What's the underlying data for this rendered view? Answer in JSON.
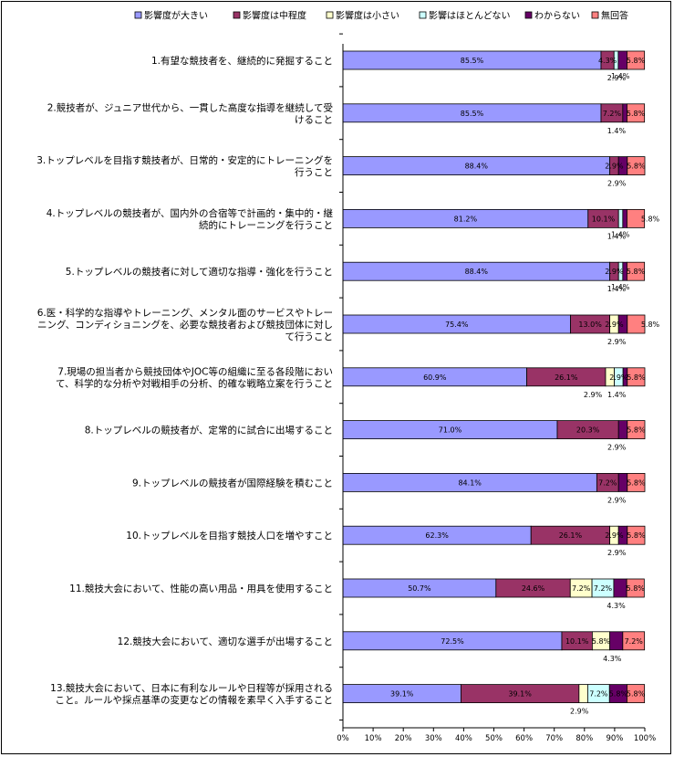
{
  "chart_data": {
    "type": "bar",
    "orientation": "horizontal",
    "stacked": true,
    "percent_scale": true,
    "xlim": [
      0,
      100
    ],
    "xticks": [
      "0%",
      "10%",
      "20%",
      "30%",
      "40%",
      "50%",
      "60%",
      "70%",
      "80%",
      "90%",
      "100%"
    ],
    "legend_position": "top",
    "grid": false,
    "categories": [
      [
        "1.有望な競技者を、継続的に発掘すること"
      ],
      [
        "2.競技者が、ジュニア世代から、一貫した高度な指導を継続して受",
        "けること"
      ],
      [
        "3.トップレベルを目指す競技者が、日常的・安定的にトレーニングを",
        "行うこと"
      ],
      [
        "4.トップレベルの競技者が、国内外の合宿等で計画的・集中的・継",
        "続的にトレーニングを行うこと"
      ],
      [
        "5.トップレベルの競技者に対して適切な指導・強化を行うこと"
      ],
      [
        "6.医・科学的な指導やトレーニング、メンタル面のサービスやトレー",
        "ニング、コンディショニングを、必要な競技者および競技団体に対し",
        "て行うこと"
      ],
      [
        "7.現場の担当者から競技団体やJOC等の組織に至る各段階におい",
        "て、科学的な分析や対戦相手の分析、的確な戦略立案を行うこと"
      ],
      [
        "8.トップレベルの競技者が、定常的に試合に出場すること"
      ],
      [
        "9.トップレベルの競技者が国際経験を積むこと"
      ],
      [
        "10.トップレベルを目指す競技人口を増やすこと"
      ],
      [
        "11.競技大会において、性能の高い用品・用具を使用すること"
      ],
      [
        "12.競技大会において、適切な選手が出場すること"
      ],
      [
        "13.競技大会において、日本に有利なルールや日程等が採用される",
        "こと。ルールや採点基準の変更などの情報を素早く入手すること"
      ]
    ],
    "series": [
      {
        "name": "影響度が大きい",
        "color": "#9999ff",
        "values": [
          85.5,
          85.5,
          88.4,
          81.2,
          88.4,
          75.4,
          60.9,
          71.0,
          84.1,
          62.3,
          50.7,
          72.5,
          39.1
        ]
      },
      {
        "name": "影響度は中程度",
        "color": "#993366",
        "values": [
          4.3,
          7.2,
          2.9,
          10.1,
          2.9,
          13.0,
          26.1,
          20.3,
          7.2,
          26.1,
          24.6,
          10.1,
          39.1
        ]
      },
      {
        "name": "影響度は小さい",
        "color": "#ffffcc",
        "values": [
          0,
          0,
          0,
          0,
          0,
          2.9,
          2.9,
          0,
          0,
          2.9,
          7.2,
          5.8,
          2.9
        ]
      },
      {
        "name": "影響はほとんどない",
        "color": "#ccffff",
        "values": [
          1.4,
          0,
          0,
          1.4,
          1.4,
          0,
          2.9,
          0,
          0,
          0,
          7.2,
          0,
          7.2
        ]
      },
      {
        "name": "わからない",
        "color": "#660066",
        "values": [
          2.9,
          1.4,
          2.9,
          1.4,
          1.4,
          2.9,
          1.4,
          2.9,
          2.9,
          2.9,
          4.3,
          4.3,
          5.8
        ]
      },
      {
        "name": "無回答",
        "color": "#ff8080",
        "values": [
          5.8,
          5.8,
          5.8,
          5.8,
          5.8,
          5.8,
          5.8,
          5.8,
          5.8,
          5.8,
          5.8,
          7.2,
          5.8
        ]
      }
    ],
    "bar_labels": [
      {
        "inside": [
          "85.5%",
          "4.3%",
          "",
          "",
          "",
          "5.8%"
        ],
        "outside": [
          [
            "1.4%",
            "",
            "in"
          ],
          [
            "2.9%",
            "",
            "below"
          ]
        ]
      },
      {
        "inside": [
          "85.5%",
          "7.2%",
          "",
          "",
          "",
          "5.8%"
        ],
        "outside": [
          [
            "1.4%",
            "",
            "below"
          ]
        ]
      },
      {
        "inside": [
          "88.4%",
          "2.9%",
          "",
          "",
          "",
          "5.8%"
        ],
        "outside": [
          [
            "2.9%",
            "",
            "below"
          ]
        ]
      },
      {
        "inside": [
          "81.2%",
          "10.1%",
          "",
          "",
          "",
          ""
        ],
        "outside": [
          [
            "1.4%",
            "",
            "in"
          ],
          [
            "1.4%",
            "",
            "below"
          ],
          [
            "5.8%",
            "",
            "right"
          ]
        ]
      },
      {
        "inside": [
          "88.4%",
          "2.9%",
          "",
          "",
          "",
          "5.8%"
        ],
        "outside": [
          [
            "1.4%",
            "",
            "in"
          ],
          [
            "1.4%",
            "",
            "below"
          ]
        ]
      },
      {
        "inside": [
          "75.4%",
          "13.0%",
          "2.9%",
          "",
          "",
          ""
        ],
        "outside": [
          [
            "2.9%",
            "",
            "below"
          ],
          [
            "5.8%",
            "",
            "right"
          ]
        ]
      },
      {
        "inside": [
          "60.9%",
          "26.1%",
          "",
          "2.9%",
          "",
          "5.8%"
        ],
        "outside": [
          [
            "2.9%",
            "",
            "below-left"
          ],
          [
            "1.4%",
            "",
            "below"
          ]
        ]
      },
      {
        "inside": [
          "71.0%",
          "20.3%",
          "",
          "",
          "",
          "5.8%"
        ],
        "outside": [
          [
            "2.9%",
            "",
            "below"
          ]
        ]
      },
      {
        "inside": [
          "84.1%",
          "7.2%",
          "",
          "",
          "",
          "5.8%"
        ],
        "outside": [
          [
            "2.9%",
            "",
            "below"
          ]
        ]
      },
      {
        "inside": [
          "62.3%",
          "26.1%",
          "2.9%",
          "",
          "",
          "5.8%"
        ],
        "outside": [
          [
            "2.9%",
            "",
            "below"
          ]
        ]
      },
      {
        "inside": [
          "50.7%",
          "24.6%",
          "7.2%",
          "7.2%",
          "",
          "5.8%"
        ],
        "outside": [
          [
            "4.3%",
            "",
            "below"
          ]
        ]
      },
      {
        "inside": [
          "72.5%",
          "10.1%",
          "5.8%",
          "",
          "",
          "7.2%"
        ],
        "outside": [
          [
            "4.3%",
            "",
            "below"
          ]
        ]
      },
      {
        "inside": [
          "39.1%",
          "39.1%",
          "",
          "7.2%",
          "5.8%",
          "5.8%"
        ],
        "outside": [
          [
            "2.9%",
            "",
            "below-left"
          ]
        ]
      }
    ]
  }
}
